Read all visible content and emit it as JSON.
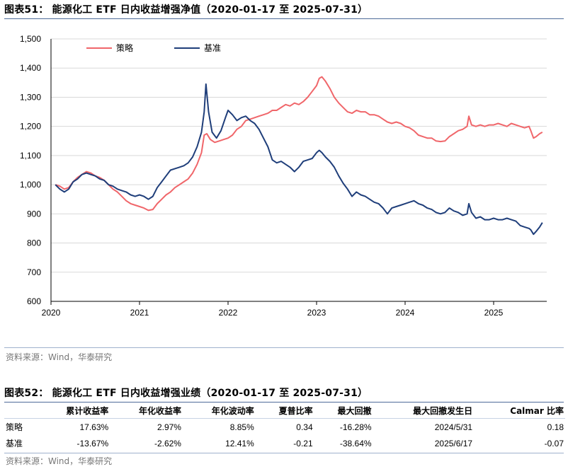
{
  "figure1": {
    "title": "图表51：  能源化工 ETF 日内收益增强净值（2020-01-17 至 2025-07-31）",
    "source": "资料来源：Wind，华泰研究"
  },
  "figure2": {
    "title": "图表52：  能源化工 ETF 日内收益增强业绩（2020-01-17 至 2025-07-31）",
    "source": "资料来源：Wind，华泰研究",
    "columns": [
      "",
      "累计收益率",
      "年化收益率",
      "年化波动率",
      "夏普比率",
      "最大回撤",
      "最大回撤发生日",
      "Calmar 比率"
    ],
    "rows": [
      [
        "策略",
        "17.63%",
        "2.97%",
        "8.85%",
        "0.34",
        "-16.28%",
        "2024/5/31",
        "0.18"
      ],
      [
        "基准",
        "-13.67%",
        "-2.62%",
        "12.41%",
        "-0.21",
        "-38.64%",
        "2025/6/17",
        "-0.07"
      ]
    ]
  },
  "chart_data": {
    "type": "line",
    "title": "能源化工 ETF 日内收益增强净值（2020-01-17 至 2025-07-31）",
    "xlabel": "",
    "ylabel": "",
    "ylim": [
      600,
      1500
    ],
    "xlim": [
      2020.0,
      2025.6
    ],
    "yticks": [
      600,
      700,
      800,
      900,
      1000,
      1100,
      1200,
      1300,
      1400,
      1500
    ],
    "ytick_labels": [
      "600",
      "700",
      "800",
      "900",
      "1,000",
      "1,100",
      "1,200",
      "1,300",
      "1,400",
      "1,500"
    ],
    "xticks": [
      2020,
      2021,
      2022,
      2023,
      2024,
      2025
    ],
    "xtick_labels": [
      "2020",
      "2021",
      "2022",
      "2023",
      "2024",
      "2025"
    ],
    "legend_position": "top-left",
    "series": [
      {
        "name": "策略",
        "color": "#f0666a",
        "points": [
          [
            2020.05,
            1000
          ],
          [
            2020.1,
            995
          ],
          [
            2020.15,
            985
          ],
          [
            2020.2,
            990
          ],
          [
            2020.25,
            1010
          ],
          [
            2020.3,
            1025
          ],
          [
            2020.35,
            1035
          ],
          [
            2020.4,
            1045
          ],
          [
            2020.45,
            1040
          ],
          [
            2020.5,
            1030
          ],
          [
            2020.55,
            1025
          ],
          [
            2020.6,
            1015
          ],
          [
            2020.65,
            1000
          ],
          [
            2020.7,
            985
          ],
          [
            2020.75,
            975
          ],
          [
            2020.8,
            960
          ],
          [
            2020.85,
            945
          ],
          [
            2020.9,
            935
          ],
          [
            2020.95,
            930
          ],
          [
            2021.0,
            925
          ],
          [
            2021.05,
            920
          ],
          [
            2021.1,
            912
          ],
          [
            2021.15,
            915
          ],
          [
            2021.2,
            935
          ],
          [
            2021.25,
            950
          ],
          [
            2021.3,
            965
          ],
          [
            2021.35,
            975
          ],
          [
            2021.4,
            990
          ],
          [
            2021.45,
            1000
          ],
          [
            2021.5,
            1010
          ],
          [
            2021.55,
            1020
          ],
          [
            2021.6,
            1040
          ],
          [
            2021.65,
            1070
          ],
          [
            2021.7,
            1110
          ],
          [
            2021.73,
            1170
          ],
          [
            2021.76,
            1175
          ],
          [
            2021.8,
            1155
          ],
          [
            2021.85,
            1145
          ],
          [
            2021.9,
            1150
          ],
          [
            2021.95,
            1155
          ],
          [
            2022.0,
            1160
          ],
          [
            2022.05,
            1170
          ],
          [
            2022.1,
            1190
          ],
          [
            2022.15,
            1200
          ],
          [
            2022.2,
            1220
          ],
          [
            2022.25,
            1225
          ],
          [
            2022.3,
            1230
          ],
          [
            2022.35,
            1235
          ],
          [
            2022.4,
            1240
          ],
          [
            2022.45,
            1245
          ],
          [
            2022.5,
            1255
          ],
          [
            2022.55,
            1255
          ],
          [
            2022.6,
            1265
          ],
          [
            2022.65,
            1275
          ],
          [
            2022.7,
            1270
          ],
          [
            2022.75,
            1280
          ],
          [
            2022.8,
            1275
          ],
          [
            2022.85,
            1285
          ],
          [
            2022.9,
            1300
          ],
          [
            2022.95,
            1320
          ],
          [
            2023.0,
            1340
          ],
          [
            2023.03,
            1365
          ],
          [
            2023.06,
            1370
          ],
          [
            2023.1,
            1355
          ],
          [
            2023.15,
            1330
          ],
          [
            2023.2,
            1300
          ],
          [
            2023.25,
            1280
          ],
          [
            2023.3,
            1265
          ],
          [
            2023.35,
            1250
          ],
          [
            2023.4,
            1245
          ],
          [
            2023.45,
            1255
          ],
          [
            2023.5,
            1250
          ],
          [
            2023.55,
            1250
          ],
          [
            2023.6,
            1240
          ],
          [
            2023.65,
            1240
          ],
          [
            2023.7,
            1235
          ],
          [
            2023.75,
            1225
          ],
          [
            2023.8,
            1215
          ],
          [
            2023.85,
            1210
          ],
          [
            2023.9,
            1215
          ],
          [
            2023.95,
            1210
          ],
          [
            2024.0,
            1200
          ],
          [
            2024.05,
            1195
          ],
          [
            2024.1,
            1185
          ],
          [
            2024.15,
            1170
          ],
          [
            2024.2,
            1165
          ],
          [
            2024.25,
            1160
          ],
          [
            2024.3,
            1160
          ],
          [
            2024.35,
            1150
          ],
          [
            2024.4,
            1148
          ],
          [
            2024.45,
            1150
          ],
          [
            2024.5,
            1165
          ],
          [
            2024.55,
            1175
          ],
          [
            2024.6,
            1185
          ],
          [
            2024.65,
            1190
          ],
          [
            2024.7,
            1200
          ],
          [
            2024.72,
            1235
          ],
          [
            2024.75,
            1205
          ],
          [
            2024.8,
            1200
          ],
          [
            2024.85,
            1205
          ],
          [
            2024.9,
            1200
          ],
          [
            2024.95,
            1205
          ],
          [
            2025.0,
            1205
          ],
          [
            2025.05,
            1210
          ],
          [
            2025.1,
            1205
          ],
          [
            2025.15,
            1200
          ],
          [
            2025.2,
            1210
          ],
          [
            2025.25,
            1205
          ],
          [
            2025.3,
            1200
          ],
          [
            2025.35,
            1195
          ],
          [
            2025.4,
            1200
          ],
          [
            2025.42,
            1185
          ],
          [
            2025.45,
            1160
          ],
          [
            2025.48,
            1165
          ],
          [
            2025.52,
            1175
          ],
          [
            2025.55,
            1180
          ]
        ]
      },
      {
        "name": "基准",
        "color": "#1f3e7a",
        "points": [
          [
            2020.05,
            1000
          ],
          [
            2020.1,
            985
          ],
          [
            2020.15,
            975
          ],
          [
            2020.2,
            985
          ],
          [
            2020.25,
            1010
          ],
          [
            2020.3,
            1020
          ],
          [
            2020.35,
            1035
          ],
          [
            2020.4,
            1040
          ],
          [
            2020.45,
            1035
          ],
          [
            2020.5,
            1030
          ],
          [
            2020.55,
            1020
          ],
          [
            2020.6,
            1015
          ],
          [
            2020.65,
            1000
          ],
          [
            2020.7,
            995
          ],
          [
            2020.75,
            985
          ],
          [
            2020.8,
            980
          ],
          [
            2020.85,
            975
          ],
          [
            2020.9,
            965
          ],
          [
            2020.95,
            960
          ],
          [
            2021.0,
            965
          ],
          [
            2021.05,
            960
          ],
          [
            2021.1,
            950
          ],
          [
            2021.15,
            960
          ],
          [
            2021.2,
            990
          ],
          [
            2021.25,
            1010
          ],
          [
            2021.3,
            1030
          ],
          [
            2021.35,
            1050
          ],
          [
            2021.4,
            1055
          ],
          [
            2021.45,
            1060
          ],
          [
            2021.5,
            1065
          ],
          [
            2021.55,
            1075
          ],
          [
            2021.6,
            1095
          ],
          [
            2021.65,
            1130
          ],
          [
            2021.7,
            1180
          ],
          [
            2021.73,
            1250
          ],
          [
            2021.75,
            1345
          ],
          [
            2021.78,
            1250
          ],
          [
            2021.82,
            1180
          ],
          [
            2021.87,
            1160
          ],
          [
            2021.92,
            1185
          ],
          [
            2021.97,
            1230
          ],
          [
            2022.0,
            1255
          ],
          [
            2022.05,
            1240
          ],
          [
            2022.1,
            1220
          ],
          [
            2022.15,
            1230
          ],
          [
            2022.2,
            1235
          ],
          [
            2022.25,
            1220
          ],
          [
            2022.3,
            1210
          ],
          [
            2022.35,
            1190
          ],
          [
            2022.4,
            1160
          ],
          [
            2022.45,
            1130
          ],
          [
            2022.5,
            1085
          ],
          [
            2022.55,
            1075
          ],
          [
            2022.6,
            1080
          ],
          [
            2022.65,
            1070
          ],
          [
            2022.7,
            1060
          ],
          [
            2022.75,
            1045
          ],
          [
            2022.8,
            1060
          ],
          [
            2022.85,
            1080
          ],
          [
            2022.9,
            1085
          ],
          [
            2022.95,
            1090
          ],
          [
            2023.0,
            1110
          ],
          [
            2023.03,
            1118
          ],
          [
            2023.06,
            1110
          ],
          [
            2023.1,
            1095
          ],
          [
            2023.15,
            1080
          ],
          [
            2023.2,
            1060
          ],
          [
            2023.25,
            1030
          ],
          [
            2023.3,
            1005
          ],
          [
            2023.35,
            985
          ],
          [
            2023.4,
            960
          ],
          [
            2023.45,
            975
          ],
          [
            2023.5,
            965
          ],
          [
            2023.55,
            960
          ],
          [
            2023.6,
            950
          ],
          [
            2023.65,
            940
          ],
          [
            2023.7,
            935
          ],
          [
            2023.75,
            920
          ],
          [
            2023.8,
            900
          ],
          [
            2023.85,
            920
          ],
          [
            2023.9,
            925
          ],
          [
            2023.95,
            930
          ],
          [
            2024.0,
            935
          ],
          [
            2024.05,
            940
          ],
          [
            2024.1,
            945
          ],
          [
            2024.15,
            935
          ],
          [
            2024.2,
            930
          ],
          [
            2024.25,
            920
          ],
          [
            2024.3,
            915
          ],
          [
            2024.35,
            905
          ],
          [
            2024.4,
            900
          ],
          [
            2024.45,
            905
          ],
          [
            2024.5,
            920
          ],
          [
            2024.55,
            910
          ],
          [
            2024.6,
            905
          ],
          [
            2024.65,
            895
          ],
          [
            2024.7,
            900
          ],
          [
            2024.72,
            935
          ],
          [
            2024.75,
            905
          ],
          [
            2024.8,
            885
          ],
          [
            2024.85,
            890
          ],
          [
            2024.9,
            880
          ],
          [
            2024.95,
            880
          ],
          [
            2025.0,
            885
          ],
          [
            2025.05,
            880
          ],
          [
            2025.1,
            880
          ],
          [
            2025.15,
            885
          ],
          [
            2025.2,
            880
          ],
          [
            2025.25,
            875
          ],
          [
            2025.3,
            860
          ],
          [
            2025.35,
            855
          ],
          [
            2025.4,
            850
          ],
          [
            2025.42,
            845
          ],
          [
            2025.45,
            830
          ],
          [
            2025.48,
            840
          ],
          [
            2025.52,
            855
          ],
          [
            2025.55,
            870
          ]
        ]
      }
    ]
  }
}
